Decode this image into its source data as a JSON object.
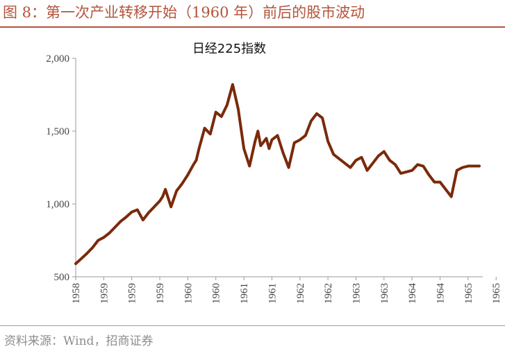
{
  "figure": {
    "title": "图 8：第一次产业转移开始（1960 年）前后的股市波动",
    "source": "资料来源：Wind，招商证券",
    "accent_color": "#b4533c"
  },
  "chart_data": {
    "type": "line",
    "title": "日经225指数",
    "xlabel": "",
    "ylabel": "",
    "ylim": [
      500,
      2000
    ],
    "yticks": [
      500,
      1000,
      1500,
      2000
    ],
    "ytick_labels": [
      "500",
      "1,000",
      "1,500",
      "2,000"
    ],
    "xlim": [
      1958.0,
      1965.2
    ],
    "xticks": [
      1958.0,
      1958.5,
      1959.0,
      1959.5,
      1960.0,
      1960.5,
      1961.0,
      1961.5,
      1962.0,
      1962.5,
      1963.0,
      1963.5,
      1964.0,
      1964.5,
      1965.0,
      1965.5
    ],
    "xtick_labels": [
      "1958",
      "1959",
      "1959",
      "1959",
      "1960",
      "1960",
      "1961",
      "1961",
      "1962",
      "1962",
      "1963",
      "1963",
      "1964",
      "1964",
      "1965",
      "1965"
    ],
    "grid": false,
    "line_color": "#7a2a0a",
    "series": [
      {
        "x": [
          1958.0,
          1958.1,
          1958.2,
          1958.3,
          1958.4,
          1958.5,
          1958.6,
          1958.7,
          1958.8,
          1958.9,
          1959.0,
          1959.1,
          1959.2,
          1959.3,
          1959.4,
          1959.5,
          1959.55,
          1959.6,
          1959.7,
          1959.8,
          1959.9,
          1960.0,
          1960.1,
          1960.15,
          1960.2,
          1960.3,
          1960.4,
          1960.5,
          1960.6,
          1960.7,
          1960.8,
          1960.9,
          1961.0,
          1961.1,
          1961.2,
          1961.25,
          1961.3,
          1961.4,
          1961.45,
          1961.5,
          1961.6,
          1961.7,
          1961.8,
          1961.9,
          1962.0,
          1962.1,
          1962.2,
          1962.3,
          1962.4,
          1962.5,
          1962.6,
          1962.7,
          1962.8,
          1962.9,
          1963.0,
          1963.1,
          1963.2,
          1963.3,
          1963.4,
          1963.5,
          1963.6,
          1963.7,
          1963.8,
          1963.9,
          1964.0,
          1964.1,
          1964.2,
          1964.3,
          1964.4,
          1964.5,
          1964.6,
          1964.7,
          1964.8,
          1964.9,
          1965.0,
          1965.1,
          1965.2
        ],
        "y": [
          590,
          625,
          660,
          700,
          750,
          770,
          800,
          840,
          880,
          910,
          945,
          960,
          890,
          940,
          980,
          1020,
          1050,
          1100,
          980,
          1090,
          1140,
          1200,
          1270,
          1300,
          1380,
          1520,
          1480,
          1630,
          1600,
          1680,
          1820,
          1650,
          1380,
          1260,
          1430,
          1500,
          1400,
          1450,
          1380,
          1440,
          1470,
          1350,
          1250,
          1420,
          1440,
          1470,
          1570,
          1620,
          1590,
          1430,
          1340,
          1310,
          1280,
          1250,
          1300,
          1320,
          1230,
          1280,
          1330,
          1360,
          1300,
          1270,
          1210,
          1220,
          1230,
          1270,
          1260,
          1200,
          1150,
          1150,
          1100,
          1050,
          1230,
          1250,
          1260,
          1260,
          1260
        ]
      }
    ]
  }
}
